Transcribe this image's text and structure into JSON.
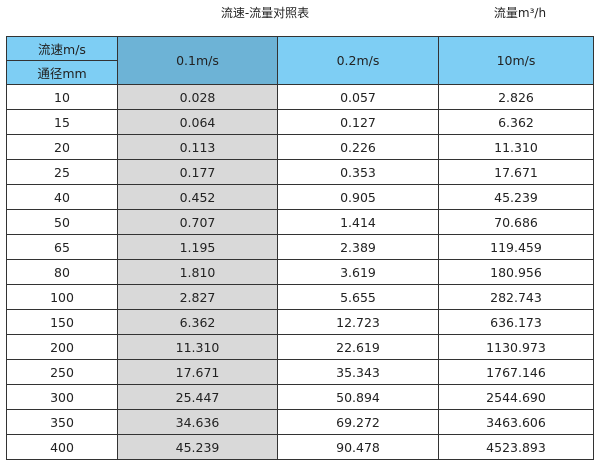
{
  "title": "流速-流量对照表",
  "unit_label": "流量m³/h",
  "header": {
    "velocity_label": "流速m/s",
    "diameter_label": "通径mm",
    "columns": [
      "0.1m/s",
      "0.2m/s",
      "10m/s"
    ]
  },
  "colors": {
    "header": "#7ecef4",
    "header_selected": "#6db3d6",
    "selected_column": "#d9d9d9"
  },
  "rows": [
    [
      "10",
      "0.028",
      "0.057",
      "2.826"
    ],
    [
      "15",
      "0.064",
      "0.127",
      "6.362"
    ],
    [
      "20",
      "0.113",
      "0.226",
      "11.310"
    ],
    [
      "25",
      "0.177",
      "0.353",
      "17.671"
    ],
    [
      "40",
      "0.452",
      "0.905",
      "45.239"
    ],
    [
      "50",
      "0.707",
      "1.414",
      "70.686"
    ],
    [
      "65",
      "1.195",
      "2.389",
      "119.459"
    ],
    [
      "80",
      "1.810",
      "3.619",
      "180.956"
    ],
    [
      "100",
      "2.827",
      "5.655",
      "282.743"
    ],
    [
      "150",
      "6.362",
      "12.723",
      "636.173"
    ],
    [
      "200",
      "11.310",
      "22.619",
      "1130.973"
    ],
    [
      "250",
      "17.671",
      "35.343",
      "1767.146"
    ],
    [
      "300",
      "25.447",
      "50.894",
      "2544.690"
    ],
    [
      "350",
      "34.636",
      "69.272",
      "3463.606"
    ],
    [
      "400",
      "45.239",
      "90.478",
      "4523.893"
    ]
  ]
}
